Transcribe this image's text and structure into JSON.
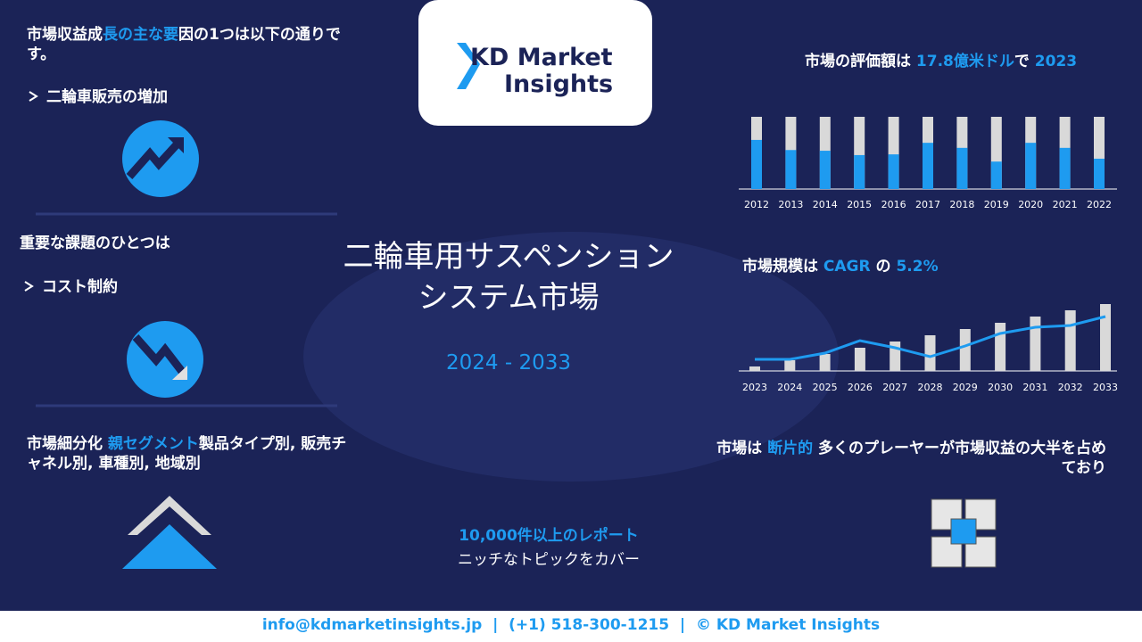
{
  "logo": {
    "line1": "KD Market",
    "line2": "Insights"
  },
  "driver": {
    "heading_parts": [
      "市場収益成",
      "長の主な要",
      "因の1つは以下の通りです。"
    ],
    "item": "二輪車販売の増加"
  },
  "challenge": {
    "heading": "重要な課題のひとつは",
    "item": "コスト制約"
  },
  "segmentation": {
    "parts": [
      "市場細分化",
      "親セグメント",
      "製品タイプ別, 販売チャネル別, 車種別, 地域別"
    ]
  },
  "title": {
    "lines": [
      "二輪車用サスペンション",
      "システム市場"
    ],
    "period": "2024 - 2033"
  },
  "reports": {
    "highlight": "10,000件以上のレポート",
    "text": "ニッチなトピックをカバー"
  },
  "valuation": {
    "parts": [
      "市場の評価額は",
      "17.8億米ドル",
      "で",
      "2023"
    ],
    "chart": {
      "type": "bar",
      "categories": [
        "2012",
        "2013",
        "2014",
        "2015",
        "2016",
        "2017",
        "2018",
        "2019",
        "2020",
        "2021",
        "2022"
      ],
      "values": [
        68,
        54,
        53,
        47,
        48,
        64,
        57,
        38,
        64,
        57,
        42
      ],
      "ylim": [
        0,
        100
      ]
    }
  },
  "growth": {
    "parts": [
      "市場規模は",
      "CAGR",
      "の",
      "5.2%"
    ],
    "chart": {
      "type": "bar",
      "categories": [
        "2023",
        "2024",
        "2025",
        "2026",
        "2027",
        "2028",
        "2029",
        "2030",
        "2031",
        "2032",
        "2033"
      ],
      "bar_values": [
        5,
        12,
        19,
        26,
        33,
        40,
        47,
        54,
        61,
        68,
        75
      ],
      "line_values": [
        13,
        13,
        20,
        34,
        26,
        16,
        28,
        42,
        49,
        51,
        61
      ],
      "ylim": [
        0,
        80
      ]
    }
  },
  "fragmentation": {
    "parts": [
      "市場は",
      "断片的",
      "多くのプレーヤーが市場収益の大半を占めており"
    ]
  },
  "footer": "info@kdmarketinsights.jp  |  (+1) 518-300-1215  |  © KD Market Insights"
}
